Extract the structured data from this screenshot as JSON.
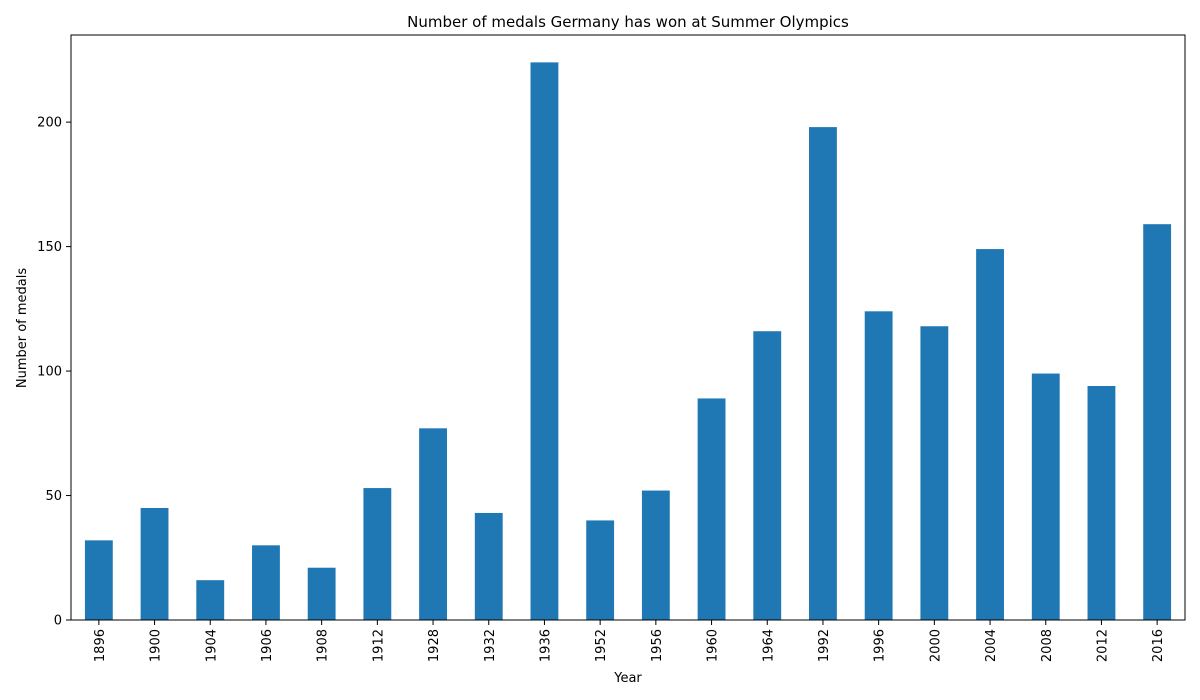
{
  "chart_data": {
    "type": "bar",
    "title": "Number of medals Germany has won at Summer Olympics",
    "xlabel": "Year",
    "ylabel": "Number of medals",
    "categories": [
      "1896",
      "1900",
      "1904",
      "1906",
      "1908",
      "1912",
      "1928",
      "1932",
      "1936",
      "1952",
      "1956",
      "1960",
      "1964",
      "1992",
      "1996",
      "2000",
      "2004",
      "2008",
      "2012",
      "2016"
    ],
    "values": [
      32,
      45,
      16,
      30,
      21,
      53,
      77,
      43,
      224,
      40,
      52,
      89,
      116,
      198,
      124,
      118,
      149,
      99,
      94,
      159
    ],
    "ylim": [
      0,
      235
    ],
    "yticks": [
      0,
      50,
      100,
      150,
      200
    ],
    "bar_color": "#1f77b4",
    "grid": false,
    "legend": "none"
  }
}
